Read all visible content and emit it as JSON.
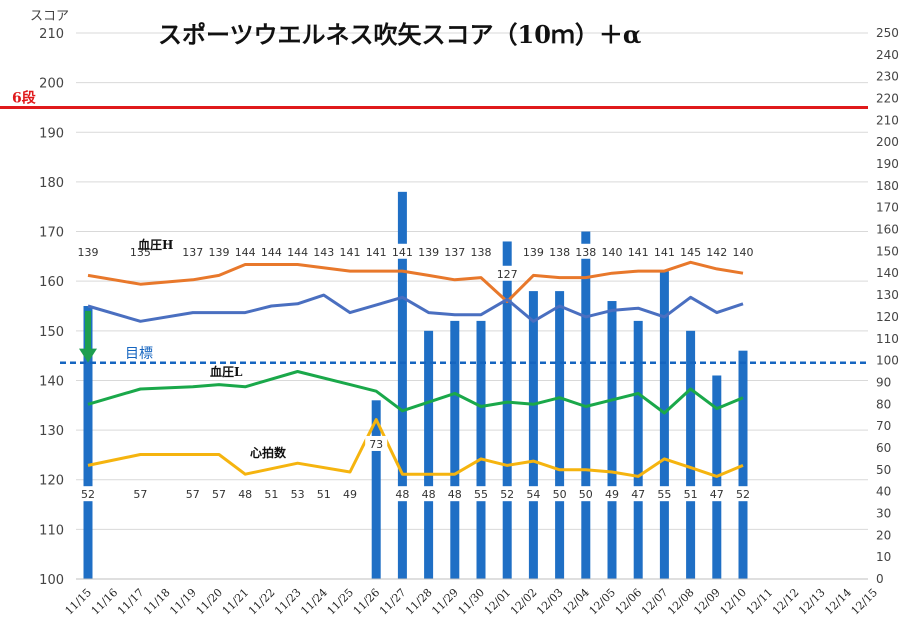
{
  "chart_data": {
    "type": "bar",
    "title": "スポーツウエルネス吹矢スコア（10ｍ）＋α",
    "ylabel": "スコア",
    "grid": true,
    "categories": [
      "11/15",
      "11/16",
      "11/17",
      "11/18",
      "11/19",
      "11/20",
      "11/21",
      "11/22",
      "11/23",
      "11/24",
      "11/25",
      "11/26",
      "11/27",
      "11/28",
      "11/29",
      "11/30",
      "12/01",
      "12/02",
      "12/03",
      "12/04",
      "12/05",
      "12/06",
      "12/07",
      "12/08",
      "12/09",
      "12/10",
      "12/11",
      "12/12",
      "12/13",
      "12/14",
      "12/15"
    ],
    "y_left": {
      "min": 100,
      "max": 210,
      "step": 10
    },
    "y_right": {
      "min": 0,
      "max": 250,
      "step": 10
    },
    "ref_lines": [
      {
        "label": "6段",
        "value": 195,
        "axis": "left",
        "color": "#e0191b",
        "style": "solid"
      },
      {
        "label": "目標",
        "value": 99,
        "axis": "right",
        "color": "#1565c0",
        "style": "dashed"
      }
    ],
    "bars": {
      "name": "スコア",
      "axis": "left",
      "color": "#1f6fc5",
      "values": {
        "11/15": 155,
        "11/26": 136,
        "11/27": 178,
        "11/28": 150,
        "11/29": 152,
        "11/30": 152,
        "12/01": 168,
        "12/02": 158,
        "12/03": 158,
        "12/04": 170,
        "12/05": 156,
        "12/06": 152,
        "12/07": 162,
        "12/08": 150,
        "12/09": 141,
        "12/10": 146
      }
    },
    "arrow": {
      "category": "11/15",
      "from": 154,
      "to": 144,
      "axis": "left",
      "color": "#1e9e50"
    },
    "series": [
      {
        "name": "血圧H",
        "axis": "right",
        "color": "#e8782b",
        "points": [
          [
            "11/15",
            139
          ],
          [
            "11/17",
            135
          ],
          [
            "11/19",
            137
          ],
          [
            "11/20",
            139
          ],
          [
            "11/21",
            144
          ],
          [
            "11/23",
            144
          ],
          [
            "11/25",
            141
          ],
          [
            "11/27",
            141
          ],
          [
            "11/28",
            139
          ],
          [
            "11/29",
            137
          ],
          [
            "11/30",
            138
          ],
          [
            "12/01",
            127
          ],
          [
            "12/02",
            139
          ],
          [
            "12/03",
            138
          ],
          [
            "12/04",
            138
          ],
          [
            "12/05",
            140
          ],
          [
            "12/06",
            141
          ],
          [
            "12/07",
            141
          ],
          [
            "12/08",
            145
          ],
          [
            "12/09",
            142
          ],
          [
            "12/10",
            140
          ]
        ],
        "labels": [
          [
            "11/15",
            "139"
          ],
          [
            "11/17",
            "135"
          ],
          [
            "11/19",
            "137"
          ],
          [
            "11/20",
            "139"
          ],
          [
            "11/21",
            "144"
          ],
          [
            "11/22",
            "144"
          ],
          [
            "11/23",
            "144"
          ],
          [
            "11/24",
            "143"
          ],
          [
            "11/25",
            "141"
          ],
          [
            "11/26",
            "141"
          ],
          [
            "11/27",
            "141"
          ],
          [
            "11/28",
            "139"
          ],
          [
            "11/29",
            "137"
          ],
          [
            "11/30",
            "138"
          ],
          [
            "12/01",
            "127"
          ],
          [
            "12/02",
            "139"
          ],
          [
            "12/03",
            "138"
          ],
          [
            "12/04",
            "138"
          ],
          [
            "12/05",
            "140"
          ],
          [
            "12/06",
            "141"
          ],
          [
            "12/07",
            "141"
          ],
          [
            "12/08",
            "145"
          ],
          [
            "12/09",
            "142"
          ],
          [
            "12/10",
            "140"
          ]
        ]
      },
      {
        "name": "",
        "axis": "right",
        "color": "#4a6fc0",
        "points": [
          [
            "11/15",
            125
          ],
          [
            "11/17",
            118
          ],
          [
            "11/19",
            122
          ],
          [
            "11/21",
            122
          ],
          [
            "11/22",
            125
          ],
          [
            "11/23",
            126
          ],
          [
            "11/24",
            130
          ],
          [
            "11/25",
            122
          ],
          [
            "11/27",
            129
          ],
          [
            "11/28",
            122
          ],
          [
            "11/29",
            121
          ],
          [
            "11/30",
            121
          ],
          [
            "12/01",
            128
          ],
          [
            "12/02",
            118
          ],
          [
            "12/03",
            125
          ],
          [
            "12/04",
            120
          ],
          [
            "12/05",
            123
          ],
          [
            "12/06",
            124
          ],
          [
            "12/07",
            120
          ],
          [
            "12/08",
            129
          ],
          [
            "12/09",
            122
          ],
          [
            "12/10",
            126
          ]
        ],
        "labels": []
      },
      {
        "name": "血圧L",
        "axis": "right",
        "color": "#1aa84a",
        "points": [
          [
            "11/15",
            80
          ],
          [
            "11/17",
            87
          ],
          [
            "11/19",
            88
          ],
          [
            "11/20",
            89
          ],
          [
            "11/21",
            88
          ],
          [
            "11/23",
            95
          ],
          [
            "11/25",
            89
          ],
          [
            "11/26",
            86
          ],
          [
            "11/27",
            77
          ],
          [
            "11/29",
            85
          ],
          [
            "11/30",
            79
          ],
          [
            "12/01",
            81
          ],
          [
            "12/02",
            80
          ],
          [
            "12/03",
            83
          ],
          [
            "12/04",
            79
          ],
          [
            "12/05",
            82
          ],
          [
            "12/06",
            85
          ],
          [
            "12/07",
            76
          ],
          [
            "12/08",
            87
          ],
          [
            "12/09",
            78
          ],
          [
            "12/10",
            83
          ]
        ],
        "labels": []
      },
      {
        "name": "心拍数",
        "axis": "right",
        "color": "#f5b40f",
        "points": [
          [
            "11/15",
            52
          ],
          [
            "11/17",
            57
          ],
          [
            "11/19",
            57
          ],
          [
            "11/20",
            57
          ],
          [
            "11/21",
            48
          ],
          [
            "11/23",
            53
          ],
          [
            "11/25",
            49
          ],
          [
            "11/26",
            73
          ],
          [
            "11/27",
            48
          ],
          [
            "11/28",
            48
          ],
          [
            "11/29",
            48
          ],
          [
            "11/30",
            55
          ],
          [
            "12/01",
            52
          ],
          [
            "12/02",
            54
          ],
          [
            "12/03",
            50
          ],
          [
            "12/04",
            50
          ],
          [
            "12/05",
            49
          ],
          [
            "12/06",
            47
          ],
          [
            "12/07",
            55
          ],
          [
            "12/08",
            51
          ],
          [
            "12/09",
            47
          ],
          [
            "12/10",
            52
          ]
        ],
        "labels": [
          [
            "11/15",
            "52"
          ],
          [
            "11/17",
            "57"
          ],
          [
            "11/19",
            "57"
          ],
          [
            "11/20",
            "57"
          ],
          [
            "11/21",
            "48"
          ],
          [
            "11/22",
            "51"
          ],
          [
            "11/23",
            "53"
          ],
          [
            "11/24",
            "51"
          ],
          [
            "11/25",
            "49"
          ],
          [
            "11/26",
            "73"
          ],
          [
            "11/27",
            "48"
          ],
          [
            "11/28",
            "48"
          ],
          [
            "11/29",
            "48"
          ],
          [
            "11/30",
            "55"
          ],
          [
            "12/01",
            "52"
          ],
          [
            "12/02",
            "54"
          ],
          [
            "12/03",
            "50"
          ],
          [
            "12/04",
            "50"
          ],
          [
            "12/05",
            "49"
          ],
          [
            "12/06",
            "47"
          ],
          [
            "12/07",
            "55"
          ],
          [
            "12/08",
            "51"
          ],
          [
            "12/09",
            "47"
          ],
          [
            "12/10",
            "52"
          ]
        ]
      }
    ]
  }
}
